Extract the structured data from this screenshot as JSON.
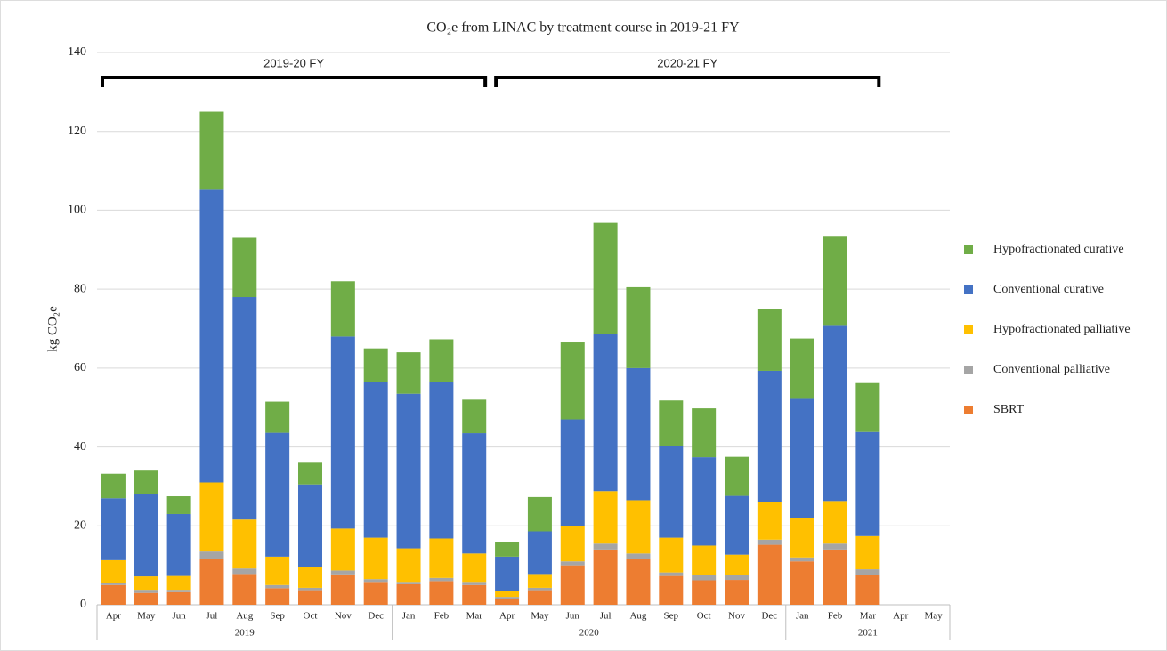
{
  "chart_data": {
    "type": "stacked_bar",
    "title": "CO₂e  from LINAC by treatment course in 2019-21 FY",
    "y_label": "kg CO₂e",
    "categories": [
      "Apr",
      "May",
      "Jun",
      "Jul",
      "Aug",
      "Sep",
      "Oct",
      "Nov",
      "Dec",
      "Jan",
      "Feb",
      "Mar",
      "Apr",
      "May",
      "Jun",
      "Jul",
      "Aug",
      "Sep",
      "Oct",
      "Nov",
      "Dec",
      "Jan",
      "Feb",
      "Mar",
      "Apr",
      "May"
    ],
    "year_groups": [
      {
        "label": "2019",
        "span": 9
      },
      {
        "label": "2020",
        "span": 12
      },
      {
        "label": "2021",
        "span": 5
      }
    ],
    "annotations": [
      {
        "text": "2019-20 FY",
        "from": 0,
        "to": 11
      },
      {
        "text": "2020-21 FY",
        "from": 12,
        "to": 23
      }
    ],
    "series": [
      {
        "name": "SBRT",
        "color": "#ed7d31",
        "values": [
          5,
          3,
          3.2,
          11.7,
          7.8,
          4.2,
          3.7,
          7.7,
          5.8,
          5.2,
          6,
          5,
          1.5,
          3.7,
          10,
          14,
          11.5,
          7.3,
          6.2,
          6.3,
          15.2,
          11,
          14,
          7.5,
          null,
          null
        ]
      },
      {
        "name": "Conventional palliative",
        "color": "#a5a5a5",
        "values": [
          0.6,
          0.8,
          0.6,
          1.8,
          1.4,
          0.8,
          0.6,
          1,
          0.7,
          0.6,
          0.8,
          0.8,
          0.5,
          0.6,
          1,
          1.5,
          1.5,
          0.9,
          1.3,
          1.2,
          1.3,
          1,
          1.5,
          1.5,
          null,
          null
        ]
      },
      {
        "name": "Hypofractionated palliative",
        "color": "#ffc000",
        "values": [
          5.7,
          3.4,
          3.5,
          17.5,
          12.4,
          7.2,
          5.2,
          10.6,
          10.5,
          8.5,
          10,
          7.2,
          1.5,
          3.5,
          9,
          13.3,
          13.5,
          8.8,
          7.5,
          5.2,
          9.5,
          10,
          10.8,
          8.4,
          null,
          null
        ]
      },
      {
        "name": "Conventional curative",
        "color": "#4472c4",
        "values": [
          15.7,
          20.8,
          15.7,
          74.2,
          56.4,
          31.4,
          21,
          48.7,
          39.5,
          39.2,
          39.7,
          30.5,
          8.7,
          10.8,
          27,
          39.8,
          33.5,
          23.3,
          22.4,
          14.9,
          33.3,
          30.2,
          44.4,
          26.4,
          null,
          null
        ]
      },
      {
        "name": "Hypofractionated curative",
        "color": "#70ad47",
        "values": [
          6.2,
          6,
          4.5,
          19.8,
          15,
          7.9,
          5.5,
          14,
          8.5,
          10.5,
          10.8,
          8.5,
          3.6,
          8.7,
          19.5,
          28.2,
          20.5,
          11.5,
          12.4,
          9.9,
          15.7,
          15.3,
          22.8,
          12.4,
          null,
          null
        ]
      }
    ],
    "ylim": [
      0,
      140
    ],
    "yticks": [
      0,
      20,
      40,
      60,
      80,
      100,
      120,
      140
    ],
    "grid": true,
    "legend": "right"
  }
}
